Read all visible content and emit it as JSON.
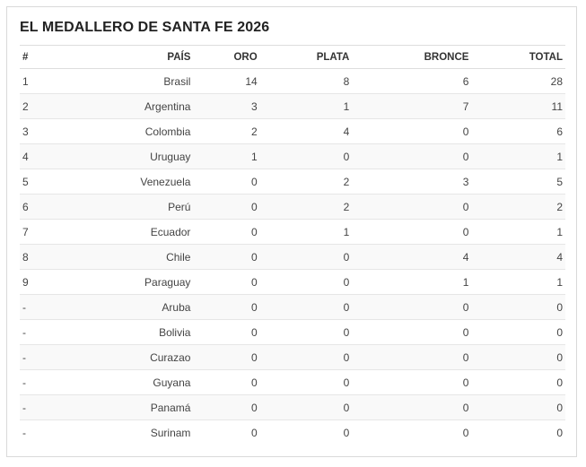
{
  "title": "EL MEDALLERO DE SANTA FE 2026",
  "headers": {
    "rank": "#",
    "country": "PAÍS",
    "gold": "ORO",
    "silver": "PLATA",
    "bronze": "BRONCE",
    "total": "TOTAL"
  },
  "rows": [
    {
      "rank": "1",
      "country": "Brasil",
      "gold": "14",
      "silver": "8",
      "bronze": "6",
      "total": "28"
    },
    {
      "rank": "2",
      "country": "Argentina",
      "gold": "3",
      "silver": "1",
      "bronze": "7",
      "total": "11"
    },
    {
      "rank": "3",
      "country": "Colombia",
      "gold": "2",
      "silver": "4",
      "bronze": "0",
      "total": "6"
    },
    {
      "rank": "4",
      "country": "Uruguay",
      "gold": "1",
      "silver": "0",
      "bronze": "0",
      "total": "1"
    },
    {
      "rank": "5",
      "country": "Venezuela",
      "gold": "0",
      "silver": "2",
      "bronze": "3",
      "total": "5"
    },
    {
      "rank": "6",
      "country": "Perú",
      "gold": "0",
      "silver": "2",
      "bronze": "0",
      "total": "2"
    },
    {
      "rank": "7",
      "country": "Ecuador",
      "gold": "0",
      "silver": "1",
      "bronze": "0",
      "total": "1"
    },
    {
      "rank": "8",
      "country": "Chile",
      "gold": "0",
      "silver": "0",
      "bronze": "4",
      "total": "4"
    },
    {
      "rank": "9",
      "country": "Paraguay",
      "gold": "0",
      "silver": "0",
      "bronze": "1",
      "total": "1"
    },
    {
      "rank": "-",
      "country": "Aruba",
      "gold": "0",
      "silver": "0",
      "bronze": "0",
      "total": "0"
    },
    {
      "rank": "-",
      "country": "Bolivia",
      "gold": "0",
      "silver": "0",
      "bronze": "0",
      "total": "0"
    },
    {
      "rank": "-",
      "country": "Curazao",
      "gold": "0",
      "silver": "0",
      "bronze": "0",
      "total": "0"
    },
    {
      "rank": "-",
      "country": "Guyana",
      "gold": "0",
      "silver": "0",
      "bronze": "0",
      "total": "0"
    },
    {
      "rank": "-",
      "country": "Panamá",
      "gold": "0",
      "silver": "0",
      "bronze": "0",
      "total": "0"
    },
    {
      "rank": "-",
      "country": "Surinam",
      "gold": "0",
      "silver": "0",
      "bronze": "0",
      "total": "0"
    }
  ]
}
